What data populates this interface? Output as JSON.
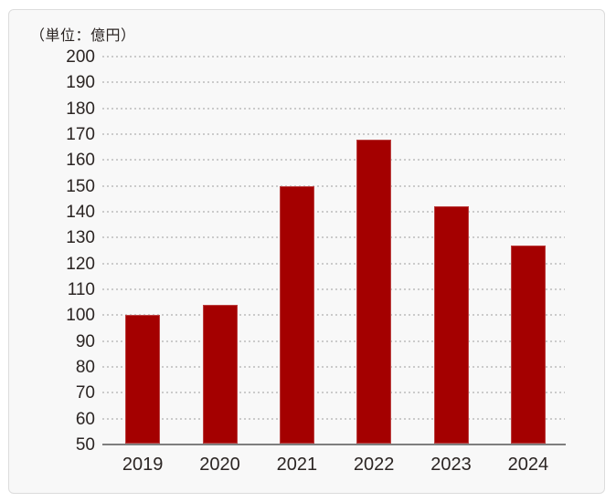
{
  "chart_data": {
    "type": "bar",
    "title": "（単位：億円）",
    "categories": [
      "2019",
      "2020",
      "2021",
      "2022",
      "2023",
      "2024"
    ],
    "values": [
      100,
      104,
      150,
      168,
      142,
      127
    ],
    "xlabel": "",
    "ylabel": "（単位：億円）",
    "ylim": [
      50,
      200
    ],
    "ytick_step": 10,
    "ytick_labels": [
      "200",
      "190",
      "180",
      "170",
      "160",
      "150",
      "140",
      "130",
      "120",
      "110",
      "100",
      "90",
      "80",
      "70",
      "60",
      "50"
    ],
    "legend": "none",
    "grid": "horizontal-dotted"
  },
  "colors": {
    "page_background": "#ffffff",
    "panel_background": "#f8f8f8",
    "panel_border": "#dcdcdc",
    "gridline": "#cbcbcb",
    "axis_line": "#7e7e7e",
    "text": "#2b2523",
    "bar": "#a40000"
  }
}
